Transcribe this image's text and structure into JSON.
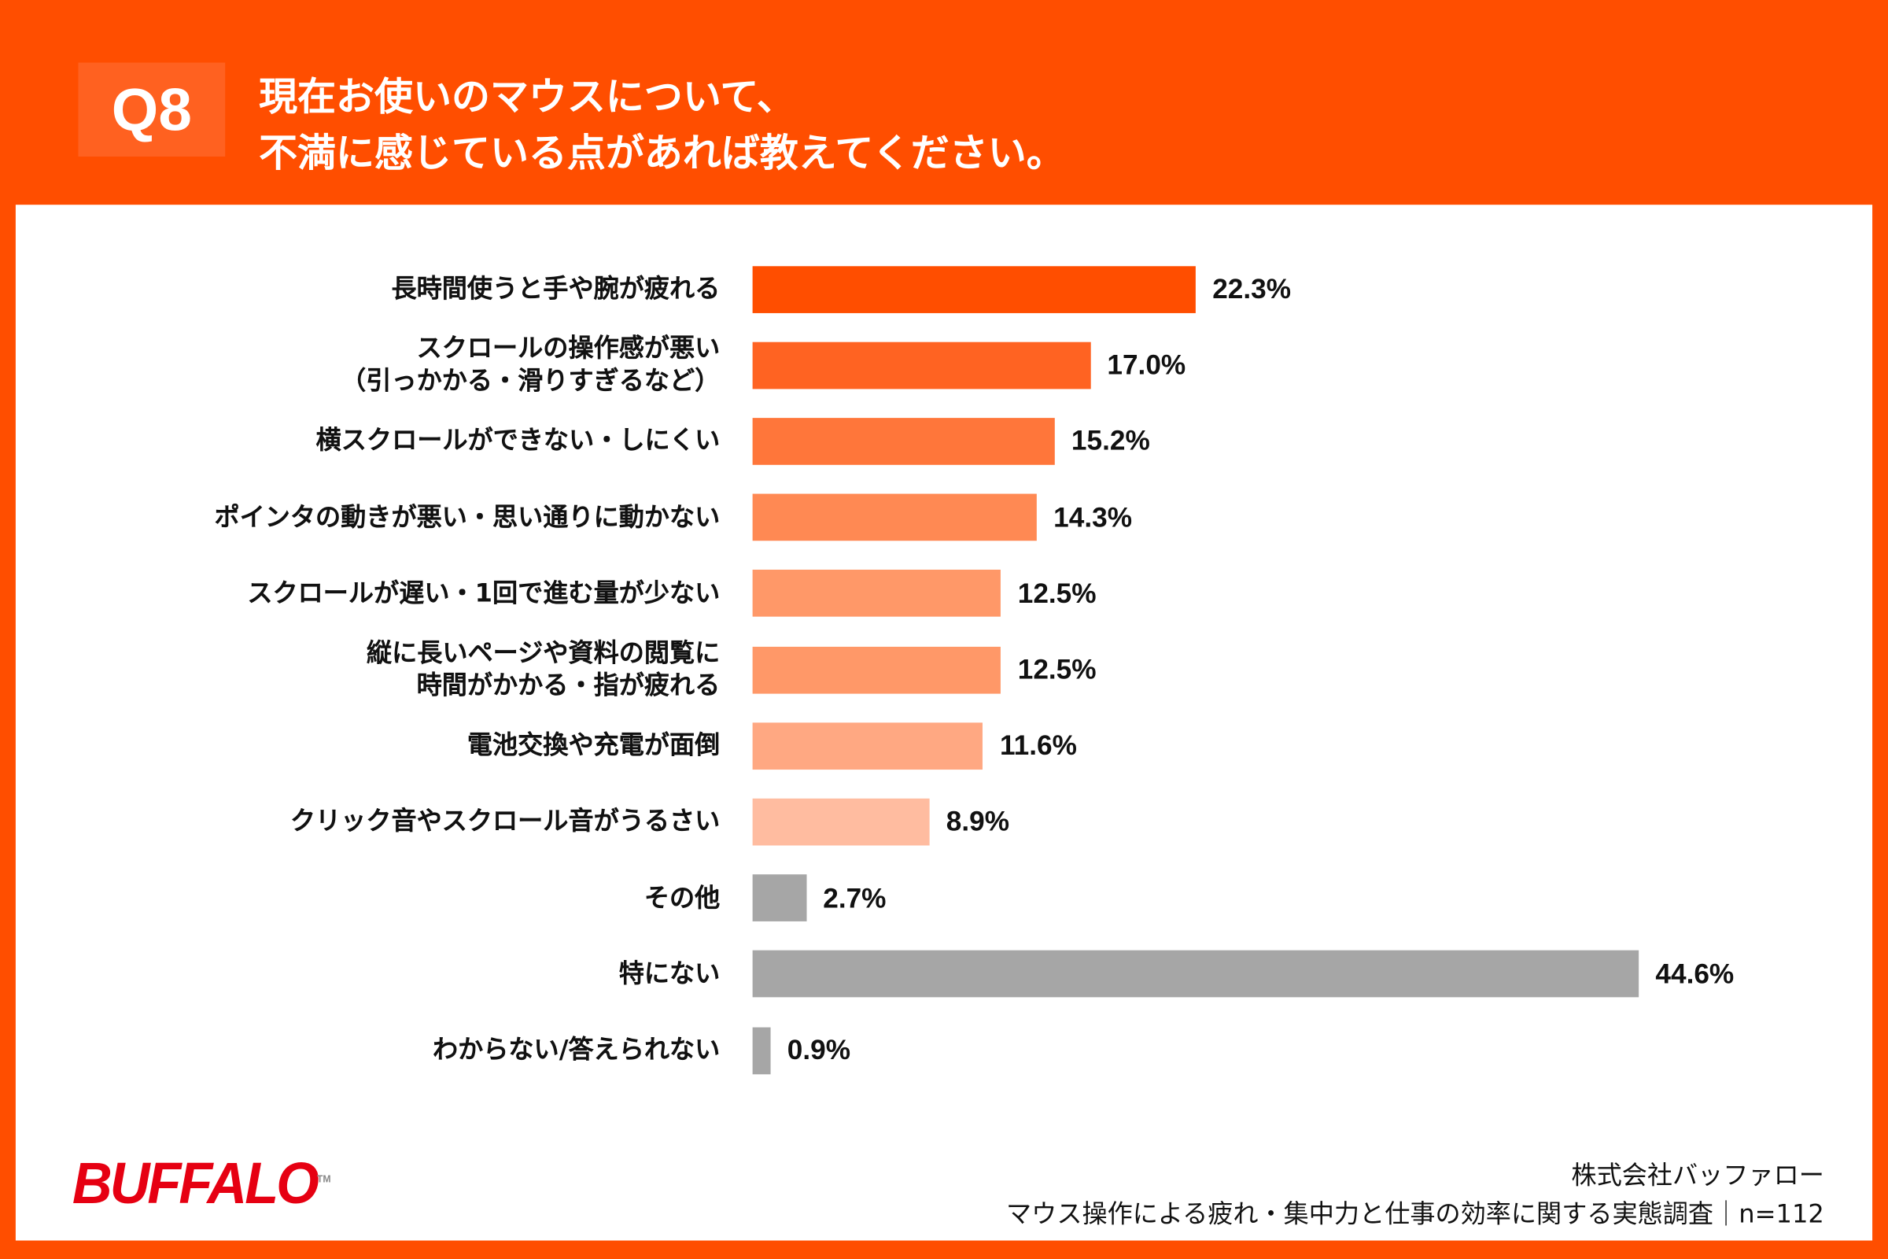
{
  "header": {
    "badge": "Q8",
    "title_line1": "現在お使いのマウスについて、",
    "title_line2": "不満に感じている点があれば教えてください。"
  },
  "colors": {
    "background": "#FF4E00",
    "badge": "#FF6120",
    "other_bars": "#A6A6A6",
    "logo": "#E60012"
  },
  "chart_data": {
    "type": "bar",
    "orientation": "horizontal",
    "categories": [
      [
        "長時間使うと手や腕が疲れる"
      ],
      [
        "スクロールの操作感が悪い",
        "（引っかかる・滑りすぎるなど）"
      ],
      [
        "横スクロールができない・しにくい"
      ],
      [
        "ポインタの動きが悪い・思い通りに動かない"
      ],
      [
        "スクロールが遅い・1回で進む量が少ない"
      ],
      [
        "縦に長いページや資料の閲覧に",
        "時間がかかる・指が疲れる"
      ],
      [
        "電池交換や充電が面倒"
      ],
      [
        "クリック音やスクロール音がうるさい"
      ],
      [
        "その他"
      ],
      [
        "特にない"
      ],
      [
        "わからない/答えられない"
      ]
    ],
    "values": [
      22.3,
      17.0,
      15.2,
      14.3,
      12.5,
      12.5,
      11.6,
      8.9,
      2.7,
      44.6,
      0.9
    ],
    "value_labels": [
      "22.3%",
      "17.0%",
      "15.2%",
      "14.3%",
      "12.5%",
      "12.5%",
      "11.6%",
      "8.9%",
      "2.7%",
      "44.6%",
      "0.9%"
    ],
    "bar_colors": [
      "#FF4E00",
      "#FF6322",
      "#FF763A",
      "#FF8953",
      "#FF9868",
      "#FF9868",
      "#FFA882",
      "#FFBCA0",
      "#A6A6A6",
      "#A6A6A6",
      "#A6A6A6"
    ],
    "unit": "%",
    "grid": false,
    "legend": "none"
  },
  "footer": {
    "logo_text": "BUFFALO",
    "logo_tm": "TM",
    "company": "株式会社バッファロー",
    "survey": "マウス操作による疲れ・集中力と仕事の効率に関する実態調査｜n=112"
  }
}
